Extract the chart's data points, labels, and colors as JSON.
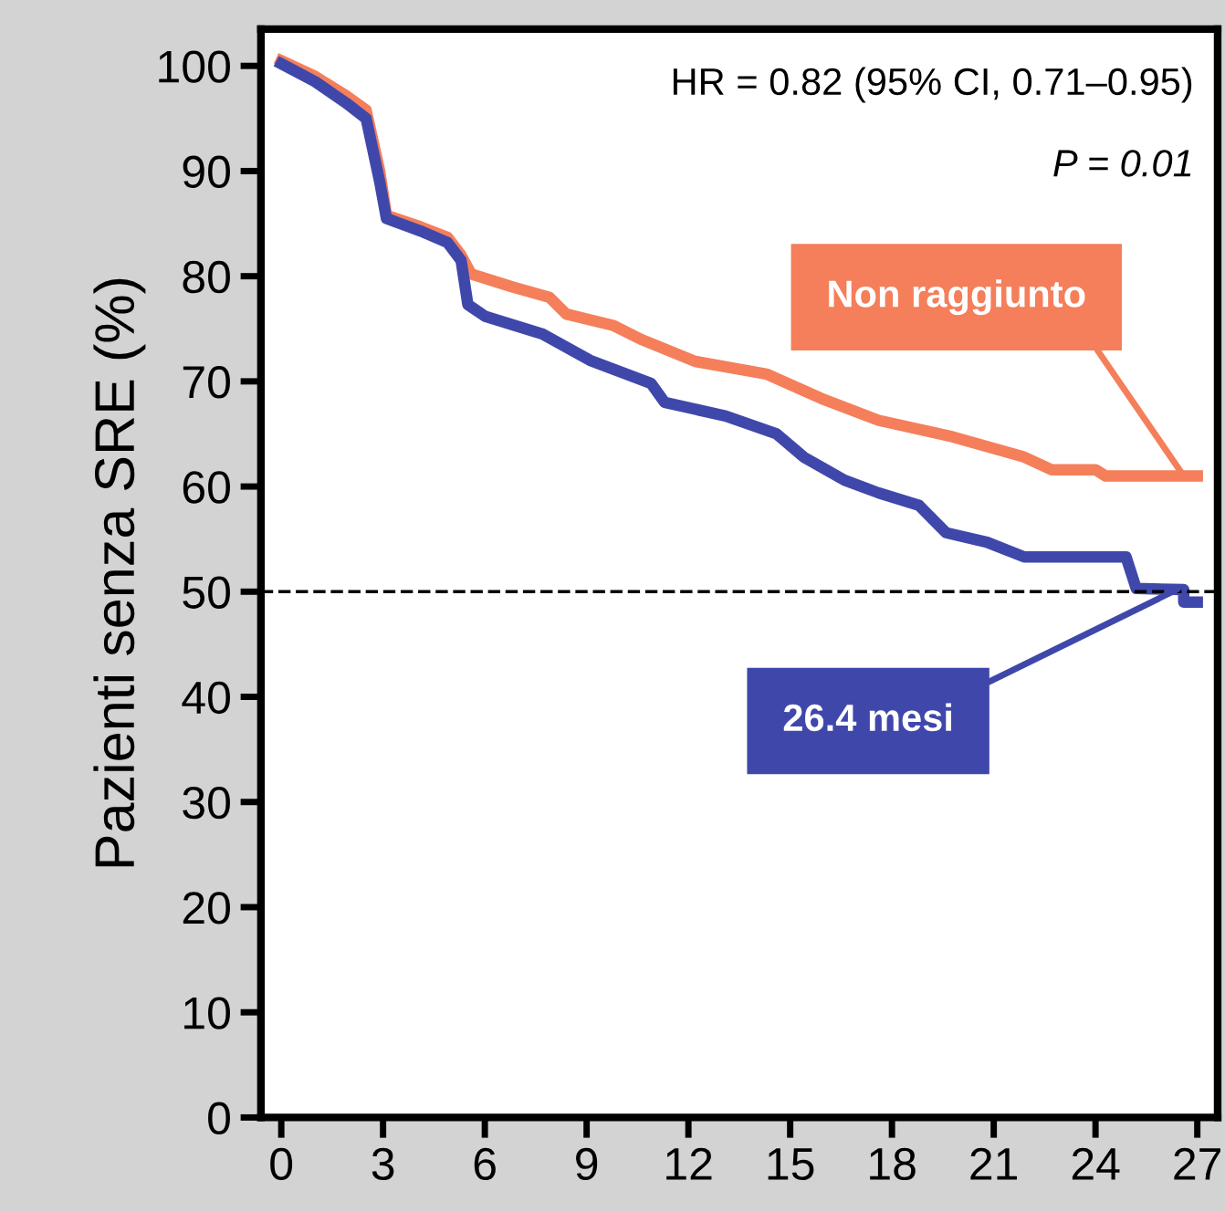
{
  "chart_data": {
    "type": "line",
    "ylabel": "Pazienti senza SRE (%)",
    "annotations": [
      "HR = 0.82 (95% CI, 0.71–0.95)",
      "P = 0.01",
      {
        "text": "Non raggiunto",
        "x": 26.6,
        "y": 61
      },
      {
        "text": "26.4 mesi",
        "x": 26.4,
        "y": 50.2
      }
    ],
    "xlim": [
      -0.6,
      27.6
    ],
    "ylim": [
      0,
      103.5
    ],
    "xticks": [
      0,
      3,
      6,
      9,
      12,
      15,
      18,
      21,
      24,
      27
    ],
    "yticks": [
      0,
      10,
      20,
      30,
      40,
      50,
      60,
      70,
      80,
      90,
      100
    ],
    "grid": false,
    "marker": "none",
    "line_style": "solid",
    "ref_lines": [
      {
        "axis": "y",
        "value": 50,
        "label": null,
        "color": "#000000",
        "line_style": "dashed"
      }
    ],
    "series": [
      {
        "color": "#f47f5a",
        "x": [
          0,
          1.0,
          1.9,
          2.5,
          2.9,
          3.1,
          4.1,
          4.9,
          5.3,
          5.6,
          6.8,
          7.9,
          8.4,
          9.8,
          10.6,
          12.2,
          14.3,
          15.9,
          17.6,
          19.7,
          21.9,
          22.7,
          24.0,
          24.3,
          27.0
        ],
        "values": [
          100.5,
          99,
          97.2,
          95.8,
          90,
          85.8,
          84.7,
          83.7,
          82,
          80.2,
          79,
          78,
          76.4,
          75.3,
          74,
          71.9,
          70.7,
          68.4,
          66.3,
          64.8,
          62.8,
          61.6,
          61.6,
          61,
          61
        ]
      },
      {
        "color": "#3f48aa",
        "x": [
          0,
          1.0,
          1.9,
          2.5,
          2.9,
          3.1,
          4.1,
          4.9,
          5.3,
          5.5,
          6.0,
          7.7,
          9.1,
          10.9,
          11.3,
          13.1,
          14.6,
          15.4,
          16.6,
          17.6,
          18.8,
          19.6,
          20.8,
          21.9,
          24.9,
          25.2,
          26.6,
          26.6,
          27.0
        ],
        "values": [
          100.2,
          98.5,
          96.5,
          95,
          89,
          85.5,
          84.3,
          83.2,
          81.5,
          77.3,
          76.2,
          74.5,
          72,
          69.8,
          68,
          66.7,
          65,
          62.8,
          60.6,
          59.4,
          58.2,
          55.6,
          54.7,
          53.3,
          53.3,
          50.3,
          50.2,
          49,
          49
        ]
      }
    ]
  }
}
